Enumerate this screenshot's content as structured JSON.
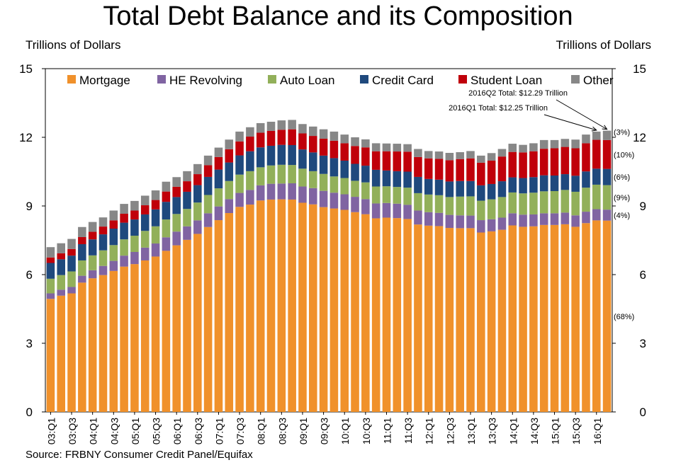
{
  "title": "Total Debt Balance and its Composition",
  "left_axis_label": "Trillions of Dollars",
  "right_axis_label": "Trillions of Dollars",
  "source": "Source: FRBNY Consumer Credit Panel/Equifax",
  "colors": {
    "Mortgage": "#F0912B",
    "HE Revolving": "#8064A2",
    "Auto Loan": "#92B05A",
    "Credit Card": "#1F497D",
    "Student Loan": "#C0000A",
    "Other": "#878787"
  },
  "chart_data": {
    "type": "bar",
    "stacked": true,
    "title": "Total Debt Balance and its Composition",
    "ylabel": "Trillions of Dollars",
    "ylim": [
      0,
      15
    ],
    "yticks": [
      0,
      3,
      6,
      9,
      12,
      15
    ],
    "legend_position": "top",
    "grid": false,
    "categories": [
      "03:Q1",
      "03:Q2",
      "03:Q3",
      "03:Q4",
      "04:Q1",
      "04:Q2",
      "04:Q3",
      "04:Q4",
      "05:Q1",
      "05:Q2",
      "05:Q3",
      "05:Q4",
      "06:Q1",
      "06:Q2",
      "06:Q3",
      "06:Q4",
      "07:Q1",
      "07:Q2",
      "07:Q3",
      "07:Q4",
      "08:Q1",
      "08:Q2",
      "08:Q3",
      "08:Q4",
      "09:Q1",
      "09:Q2",
      "09:Q3",
      "09:Q4",
      "10:Q1",
      "10:Q2",
      "10:Q3",
      "10:Q4",
      "11:Q1",
      "11:Q2",
      "11:Q3",
      "11:Q4",
      "12:Q1",
      "12:Q2",
      "12:Q3",
      "12:Q4",
      "13:Q1",
      "13:Q2",
      "13:Q3",
      "13:Q4",
      "14:Q1",
      "14:Q2",
      "14:Q3",
      "14:Q4",
      "15:Q1",
      "15:Q2",
      "15:Q3",
      "15:Q4",
      "16:Q1",
      "16:Q2"
    ],
    "x_tick_labels": [
      "03:Q1",
      "03:Q3",
      "04:Q1",
      "04:Q3",
      "05:Q1",
      "05:Q3",
      "06:Q1",
      "06:Q3",
      "07:Q1",
      "07:Q3",
      "08:Q1",
      "08:Q3",
      "09:Q1",
      "09:Q3",
      "10:Q1",
      "10:Q3",
      "11:Q1",
      "11:Q3",
      "12:Q1",
      "12:Q3",
      "13:Q1",
      "13:Q3",
      "14:Q1",
      "14:Q3",
      "15:Q1",
      "15:Q3",
      "16:Q1"
    ],
    "series": [
      {
        "name": "Mortgage",
        "values": [
          4.94,
          5.08,
          5.18,
          5.65,
          5.84,
          5.98,
          6.16,
          6.35,
          6.46,
          6.62,
          6.79,
          7.04,
          7.28,
          7.52,
          7.78,
          8.08,
          8.38,
          8.69,
          8.96,
          9.06,
          9.24,
          9.28,
          9.29,
          9.28,
          9.14,
          9.07,
          8.95,
          8.89,
          8.83,
          8.73,
          8.64,
          8.46,
          8.49,
          8.47,
          8.43,
          8.19,
          8.14,
          8.12,
          8.04,
          8.03,
          8.03,
          7.84,
          7.89,
          7.96,
          8.15,
          8.09,
          8.11,
          8.17,
          8.17,
          8.2,
          8.09,
          8.25,
          8.37,
          8.36
        ]
      },
      {
        "name": "HE Revolving",
        "values": [
          0.24,
          0.26,
          0.28,
          0.3,
          0.35,
          0.4,
          0.44,
          0.48,
          0.53,
          0.56,
          0.57,
          0.59,
          0.6,
          0.59,
          0.59,
          0.6,
          0.6,
          0.61,
          0.61,
          0.64,
          0.66,
          0.69,
          0.69,
          0.71,
          0.71,
          0.71,
          0.71,
          0.69,
          0.68,
          0.67,
          0.66,
          0.65,
          0.64,
          0.63,
          0.62,
          0.61,
          0.59,
          0.58,
          0.57,
          0.56,
          0.55,
          0.54,
          0.53,
          0.53,
          0.53,
          0.53,
          0.52,
          0.51,
          0.51,
          0.51,
          0.5,
          0.5,
          0.49,
          0.48
        ]
      },
      {
        "name": "Auto Loan",
        "values": [
          0.64,
          0.64,
          0.68,
          0.67,
          0.65,
          0.68,
          0.69,
          0.71,
          0.71,
          0.73,
          0.75,
          0.78,
          0.77,
          0.76,
          0.78,
          0.8,
          0.79,
          0.79,
          0.8,
          0.82,
          0.79,
          0.8,
          0.82,
          0.8,
          0.78,
          0.74,
          0.74,
          0.71,
          0.71,
          0.7,
          0.73,
          0.74,
          0.73,
          0.73,
          0.75,
          0.76,
          0.77,
          0.77,
          0.78,
          0.82,
          0.84,
          0.85,
          0.87,
          0.9,
          0.91,
          0.93,
          0.95,
          0.96,
          0.97,
          0.99,
          1.03,
          1.05,
          1.07,
          1.07
        ]
      },
      {
        "name": "Credit Card",
        "values": [
          0.69,
          0.69,
          0.69,
          0.71,
          0.7,
          0.7,
          0.72,
          0.73,
          0.71,
          0.72,
          0.74,
          0.77,
          0.74,
          0.75,
          0.76,
          0.79,
          0.82,
          0.81,
          0.84,
          0.87,
          0.87,
          0.86,
          0.87,
          0.87,
          0.84,
          0.82,
          0.8,
          0.8,
          0.76,
          0.74,
          0.73,
          0.73,
          0.69,
          0.69,
          0.7,
          0.71,
          0.68,
          0.68,
          0.68,
          0.68,
          0.67,
          0.67,
          0.67,
          0.69,
          0.66,
          0.67,
          0.68,
          0.7,
          0.68,
          0.69,
          0.7,
          0.71,
          0.7,
          0.71
        ]
      },
      {
        "name": "Student Loan",
        "values": [
          0.24,
          0.26,
          0.29,
          0.31,
          0.33,
          0.34,
          0.36,
          0.39,
          0.39,
          0.4,
          0.41,
          0.45,
          0.45,
          0.46,
          0.48,
          0.51,
          0.55,
          0.58,
          0.61,
          0.64,
          0.64,
          0.65,
          0.66,
          0.69,
          0.7,
          0.72,
          0.74,
          0.76,
          0.76,
          0.78,
          0.8,
          0.81,
          0.84,
          0.86,
          0.87,
          0.87,
          0.9,
          0.91,
          0.93,
          0.96,
          0.99,
          0.99,
          1.02,
          1.08,
          1.11,
          1.12,
          1.13,
          1.16,
          1.19,
          1.19,
          1.2,
          1.23,
          1.26,
          1.26
        ]
      },
      {
        "name": "Other",
        "values": [
          0.45,
          0.44,
          0.44,
          0.44,
          0.43,
          0.4,
          0.43,
          0.43,
          0.42,
          0.42,
          0.42,
          0.43,
          0.42,
          0.44,
          0.44,
          0.42,
          0.41,
          0.42,
          0.43,
          0.41,
          0.42,
          0.4,
          0.41,
          0.41,
          0.41,
          0.41,
          0.41,
          0.4,
          0.38,
          0.38,
          0.35,
          0.35,
          0.34,
          0.34,
          0.33,
          0.35,
          0.32,
          0.32,
          0.32,
          0.3,
          0.32,
          0.31,
          0.33,
          0.33,
          0.36,
          0.33,
          0.35,
          0.38,
          0.36,
          0.35,
          0.38,
          0.38,
          0.36,
          0.41
        ]
      }
    ],
    "segment_share_labels": [
      {
        "series": "Other",
        "text": "(3%)"
      },
      {
        "series": "Student Loan",
        "text": "(10%)"
      },
      {
        "series": "Credit Card",
        "text": "(6%)"
      },
      {
        "series": "Auto Loan",
        "text": "(9%)"
      },
      {
        "series": "HE Revolving",
        "text": "(4%)"
      },
      {
        "series": "Mortgage",
        "text": "(68%)"
      }
    ],
    "annotations": [
      {
        "text": "2016Q2 Total: $12.29 Trillion",
        "category": "16:Q2"
      },
      {
        "text": "2016Q1 Total: $12.25 Trillion",
        "category": "16:Q1"
      }
    ]
  }
}
